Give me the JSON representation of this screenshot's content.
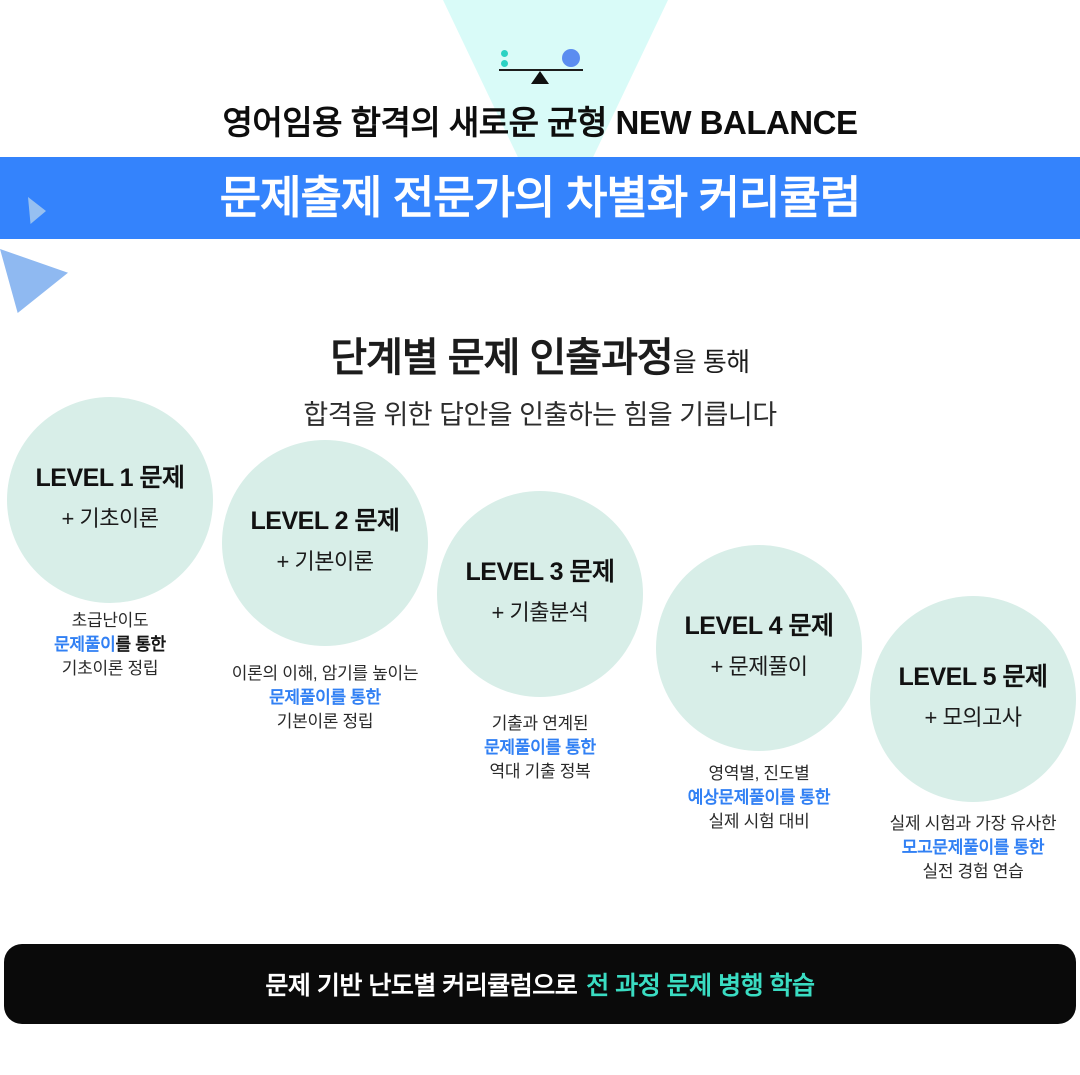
{
  "header": {
    "tagline": "영어임용 합격의 새로운 균형 NEW BALANCE",
    "banner_title": "문제출제 전문가의 차별화 커리큘럼"
  },
  "intro": {
    "title_strong": "단계별 문제 인출과정",
    "title_suffix": "을 통해",
    "subtitle": "합격을 위한 답안을 인출하는 힘을 기릅니다"
  },
  "levels": [
    {
      "title": "LEVEL 1 문제",
      "subtitle": "+ 기초이론",
      "desc_line1": "초급난이도",
      "highlight": "문제풀이",
      "highlight_suffix": "를 통한",
      "desc_line3": "기초이론 정립"
    },
    {
      "title": "LEVEL 2 문제",
      "subtitle": "+ 기본이론",
      "desc_line1": "이론의 이해, 암기를 높이는",
      "highlight": "문제풀이를 통한",
      "highlight_suffix": "",
      "desc_line3": "기본이론 정립"
    },
    {
      "title": "LEVEL 3 문제",
      "subtitle": "+ 기출분석",
      "desc_line1": "기출과 연계된",
      "highlight": "문제풀이를 통한",
      "highlight_suffix": "",
      "desc_line3": "역대 기출 정복"
    },
    {
      "title": "LEVEL 4 문제",
      "subtitle": "+ 문제풀이",
      "desc_line1": "영역별, 진도별",
      "highlight": "예상문제풀이를 통한",
      "highlight_suffix": "",
      "desc_line3": "실제 시험 대비"
    },
    {
      "title": "LEVEL 5 문제",
      "subtitle": "+ 모의고사",
      "desc_line1": "실제 시험과 가장 유사한",
      "highlight": "모고문제풀이를 통한",
      "highlight_suffix": "",
      "desc_line3": "실전 경험 연습"
    }
  ],
  "footer": {
    "text_white": "문제 기반 난도별 커리큘럼으로",
    "text_teal": "전 과정 문제 병행 학습"
  },
  "icons": {
    "balance_scale": "balance-scale-icon"
  },
  "colors": {
    "banner_blue": "#3483FC",
    "circle_mint": "#D8EEE8",
    "triangle_cyan": "#D9FBF8",
    "highlight_blue": "#3180F4",
    "accent_teal": "#3ADCC2",
    "weight_dot_teal": "#2BD2C3",
    "weight_ball_blue": "#5B8DF0",
    "left_triangle_blue": "#8FB9F1",
    "footer_black": "#0A0A0A"
  }
}
